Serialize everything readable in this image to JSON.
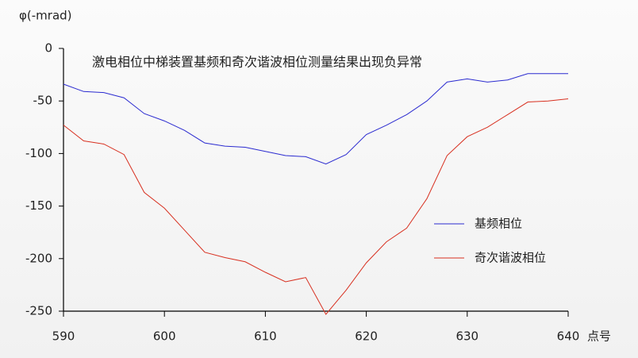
{
  "chart_data": {
    "type": "line",
    "title": "激电相位中梯装置基频和奇次谐波相位测量结果出现负异常",
    "y_label": "φ(-mrad)",
    "x_label": "点号",
    "x": [
      590,
      592,
      594,
      596,
      598,
      600,
      602,
      604,
      606,
      608,
      610,
      612,
      614,
      616,
      618,
      620,
      622,
      624,
      626,
      628,
      630,
      632,
      634,
      636,
      638,
      640
    ],
    "series": [
      {
        "name": "基频相位",
        "color": "#2b2bd0",
        "values": [
          -34,
          -41,
          -42,
          -47,
          -62,
          -69,
          -78,
          -90,
          -93,
          -94,
          -98,
          -102,
          -103,
          -110,
          -101,
          -82,
          -73,
          -63,
          -50,
          -32,
          -29,
          -32,
          -30,
          -24,
          -24,
          -24
        ]
      },
      {
        "name": "奇次谐波相位",
        "color": "#d83020",
        "values": [
          -73,
          -88,
          -91,
          -101,
          -137,
          -152,
          -173,
          -194,
          -199,
          -203,
          -213,
          -222,
          -218,
          -253,
          -230,
          -204,
          -184,
          -171,
          -143,
          -102,
          -84,
          -75,
          -63,
          -51,
          -50,
          -48
        ]
      }
    ],
    "xlim": [
      590,
      640
    ],
    "xticks": [
      590,
      600,
      610,
      620,
      630,
      640
    ],
    "ylim": [
      -250,
      0
    ],
    "yticks": [
      0,
      -50,
      -100,
      -150,
      -200,
      -250
    ],
    "legend": "right"
  }
}
